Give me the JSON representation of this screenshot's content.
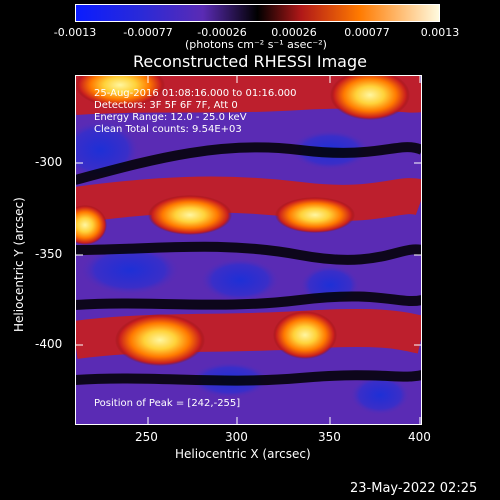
{
  "colorbar": {
    "ticks": [
      "-0.0013",
      "-0.00077",
      "-0.00026",
      "0.00026",
      "0.00077",
      "0.0013"
    ],
    "units": "(photons cm⁻² s⁻¹ asec⁻²)"
  },
  "title": "Reconstructed RHESSI Image",
  "info": {
    "time": "25-Aug-2016 01:08:16.000 to 01:16.000",
    "detectors": "Detectors: 3F 5F 6F 7F, Att 0",
    "energy": "Energy Range: 12.0 - 25.0 keV",
    "clean": "Clean    Total counts: 9.54E+03"
  },
  "peak": "Position of Peak = [242,-255]",
  "axes": {
    "xlabel": "Heliocentric X (arcsec)",
    "ylabel": "Heliocentric Y (arcsec)",
    "xticks": [
      "250",
      "300",
      "350",
      "400"
    ],
    "yticks": [
      "-300",
      "-350",
      "-400"
    ]
  },
  "timestamp": "23-May-2022 02:25",
  "colors": {
    "blue": "#1e2fd6",
    "purple": "#5a2bb4",
    "red": "#c81e1e",
    "orange": "#ff8c00",
    "yellow": "#ffe64a"
  }
}
